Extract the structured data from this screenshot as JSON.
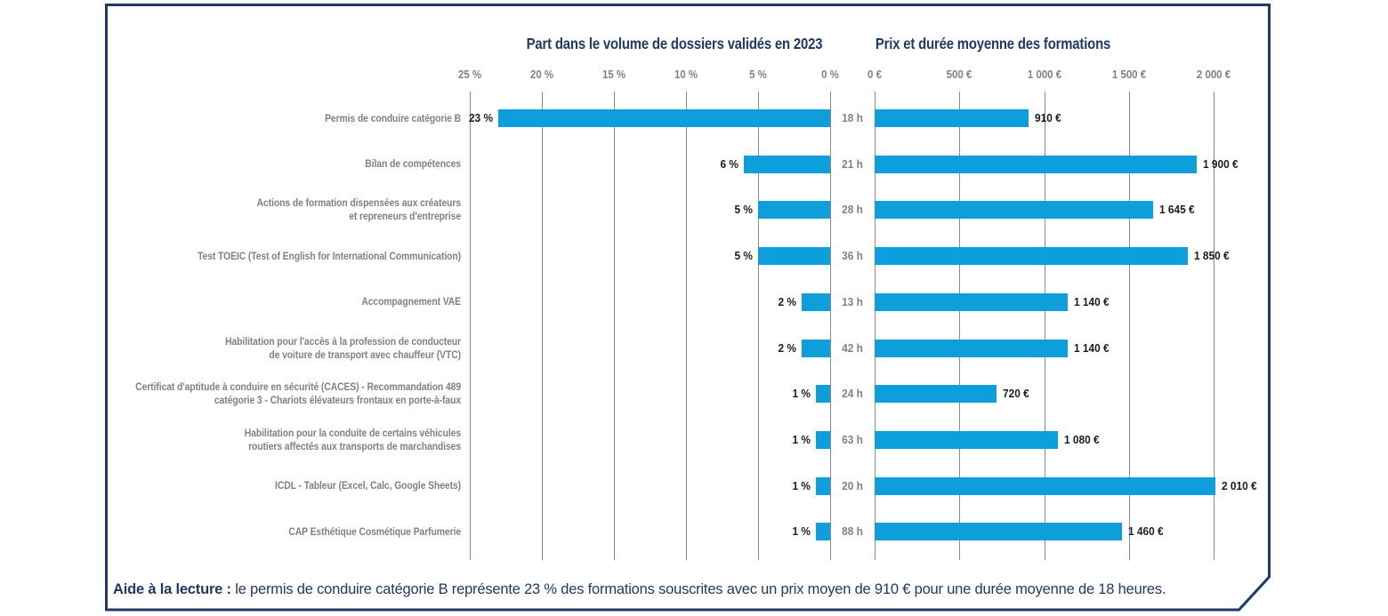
{
  "titles": {
    "left": "Part dans le volume de dossiers validés en 2023",
    "right": "Prix et durée moyenne des formations"
  },
  "axes": {
    "left": {
      "ticks": [
        {
          "value": 25,
          "label": "25 %"
        },
        {
          "value": 20,
          "label": "20 %"
        },
        {
          "value": 15,
          "label": "15 %"
        },
        {
          "value": 10,
          "label": "10 %"
        },
        {
          "value": 5,
          "label": "5 %"
        },
        {
          "value": 0,
          "label": "0 %"
        }
      ]
    },
    "right": {
      "ticks": [
        {
          "value": 0,
          "label": "0 €"
        },
        {
          "value": 500,
          "label": "500 €"
        },
        {
          "value": 1000,
          "label": "1 000 €"
        },
        {
          "value": 1500,
          "label": "1 500 €"
        },
        {
          "value": 2000,
          "label": "2 000 €"
        }
      ]
    }
  },
  "rows": [
    {
      "label": "Permis de conduire catégorie B",
      "pct": 23,
      "pct_label": "23 %",
      "hours_label": "18 h",
      "price": 910,
      "price_label": "910 €"
    },
    {
      "label": "Bilan de compétences",
      "pct": 6,
      "pct_label": "6 %",
      "hours_label": "21 h",
      "price": 1900,
      "price_label": "1 900 €"
    },
    {
      "label": "Actions de formation dispensées aux créateurs\net repreneurs d'entreprise",
      "pct": 5,
      "pct_label": "5 %",
      "hours_label": "28 h",
      "price": 1645,
      "price_label": "1 645 €"
    },
    {
      "label": "Test TOEIC (Test of English for International Communication)",
      "pct": 5,
      "pct_label": "5 %",
      "hours_label": "36 h",
      "price": 1850,
      "price_label": "1 850 €"
    },
    {
      "label": "Accompagnement VAE",
      "pct": 2,
      "pct_label": "2 %",
      "hours_label": "13 h",
      "price": 1140,
      "price_label": "1 140 €"
    },
    {
      "label": "Habilitation pour l'accès à la profession de conducteur\nde voiture de transport avec chauffeur (VTC)",
      "pct": 2,
      "pct_label": "2 %",
      "hours_label": "42 h",
      "price": 1140,
      "price_label": "1 140 €"
    },
    {
      "label": "Certificat d'aptitude à conduire en sécurité (CACES) - Recommandation 489\ncatégorie 3 - Chariots élévateurs frontaux en porte-à-faux",
      "pct": 1,
      "pct_label": "1 %",
      "hours_label": "24 h",
      "price": 720,
      "price_label": "720 €"
    },
    {
      "label": "Habilitation pour la conduite de certains véhicules\nroutiers affectés aux transports de marchandises",
      "pct": 1,
      "pct_label": "1 %",
      "hours_label": "63 h",
      "price": 1080,
      "price_label": "1 080 €"
    },
    {
      "label": "ICDL - Tableur (Excel, Calc, Google Sheets)",
      "pct": 1,
      "pct_label": "1 %",
      "hours_label": "20 h",
      "price": 2010,
      "price_label": "2 010 €"
    },
    {
      "label": "CAP Esthétique Cosmétique Parfumerie",
      "pct": 1,
      "pct_label": "1 %",
      "hours_label": "88 h",
      "price": 1460,
      "price_label": "1 460 €"
    }
  ],
  "note": {
    "prefix": "Aide à la lecture :",
    "text": " le permis de conduire catégorie B représente 23 % des formations souscrites avec un prix moyen de 910 € pour une durée moyenne de 18 heures."
  },
  "colors": {
    "bar": "#0d9fdb",
    "navy": "#1f3a68",
    "gray": "#7f8184",
    "black": "#1c1c1c",
    "grid": "#8a8a8a"
  },
  "chart_data": {
    "type": "bar",
    "orientation": "horizontal-dual",
    "title_left": "Part dans le volume de dossiers validés en 2023",
    "title_right": "Prix et durée moyenne des formations",
    "categories": [
      "Permis de conduire catégorie B",
      "Bilan de compétences",
      "Actions de formation dispensées aux créateurs et repreneurs d'entreprise",
      "Test TOEIC (Test of English for International Communication)",
      "Accompagnement VAE",
      "Habilitation pour l'accès à la profession de conducteur de voiture de transport avec chauffeur (VTC)",
      "Certificat d'aptitude à conduire en sécurité (CACES) - Recommandation 489 catégorie 3 - Chariots élévateurs frontaux en porte-à-faux",
      "Habilitation pour la conduite de certains véhicules routiers affectés aux transports de marchandises",
      "ICDL - Tableur (Excel, Calc, Google Sheets)",
      "CAP Esthétique Cosmétique Parfumerie"
    ],
    "series": [
      {
        "name": "Part dans le volume de dossiers validés en 2023 (%)",
        "values": [
          23,
          6,
          5,
          5,
          2,
          2,
          1,
          1,
          1,
          1
        ]
      },
      {
        "name": "Prix moyen (€)",
        "values": [
          910,
          1900,
          1645,
          1850,
          1140,
          1140,
          720,
          1080,
          2010,
          1460
        ]
      },
      {
        "name": "Durée moyenne (h)",
        "values": [
          18,
          21,
          28,
          36,
          13,
          42,
          24,
          63,
          20,
          88
        ]
      }
    ],
    "axis_left_pct": {
      "range": [
        0,
        25
      ],
      "ticks": [
        25,
        20,
        15,
        10,
        5,
        0
      ],
      "unit": "%",
      "direction": "right-to-left"
    },
    "axis_right_eur": {
      "range": [
        0,
        2000
      ],
      "ticks": [
        0,
        500,
        1000,
        1500,
        2000
      ],
      "unit": "€"
    },
    "grid": true,
    "note": "Aide à la lecture : le permis de conduire catégorie B représente 23 % des formations souscrites avec un prix moyen de 910 € pour une durée moyenne de 18 heures."
  }
}
